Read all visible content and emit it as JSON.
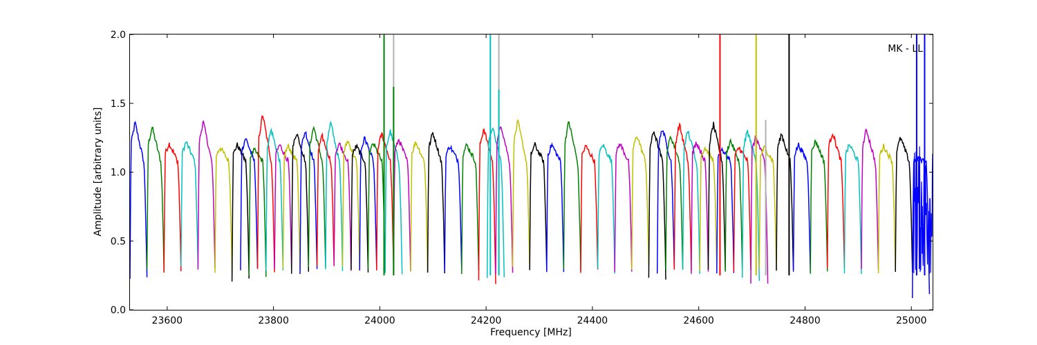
{
  "chart_data": {
    "type": "line",
    "title": "",
    "xlabel": "Frequency [MHz]",
    "ylabel": "Amplitude [arbitrary units]",
    "xlim": [
      23530,
      25040
    ],
    "ylim": [
      0.0,
      2.0
    ],
    "xticks": [
      23600,
      23800,
      24000,
      24200,
      24400,
      24600,
      24800,
      25000
    ],
    "xtick_labels": [
      "23600",
      "23800",
      "24000",
      "24200",
      "24400",
      "24600",
      "24800",
      "25000"
    ],
    "yticks": [
      0.0,
      0.5,
      1.0,
      1.5,
      2.0
    ],
    "ytick_labels": [
      "0.0",
      "0.5",
      "1.0",
      "1.5",
      "2.0"
    ],
    "grid": false,
    "legend": "none",
    "annotation": "MK - LL",
    "color_cycle": [
      "#0000ff",
      "#008000",
      "#ff0000",
      "#00bfbf",
      "#bf00bf",
      "#bfbf00",
      "#000000"
    ],
    "band_width_mhz": 32,
    "band_starts_mhz": [
      23530,
      23562,
      23594,
      23626,
      23658,
      23690,
      23722,
      23738,
      23754,
      23770,
      23786,
      23802,
      23818,
      23834,
      23850,
      23866,
      23882,
      23898,
      23914,
      23930,
      23946,
      23962,
      23978,
      23994,
      24010,
      24026,
      24058,
      24090,
      24122,
      24154,
      24186,
      24202,
      24218,
      24250,
      24282,
      24314,
      24346,
      24378,
      24410,
      24442,
      24474,
      24506,
      24522,
      24538,
      24554,
      24570,
      24586,
      24602,
      24618,
      24634,
      24650,
      24666,
      24682,
      24698,
      24714,
      24746,
      24778,
      24810,
      24842,
      24874,
      24906,
      24938,
      24970,
      25002
    ],
    "band_peaks": [
      1.36,
      1.33,
      1.21,
      1.22,
      1.37,
      1.18,
      1.2,
      1.25,
      1.16,
      1.42,
      1.31,
      1.2,
      1.19,
      1.29,
      1.3,
      1.33,
      1.26,
      1.36,
      1.21,
      1.23,
      1.19,
      1.25,
      1.21,
      1.28,
      1.3,
      1.24,
      1.22,
      1.29,
      1.19,
      1.2,
      1.32,
      1.33,
      1.35,
      1.37,
      1.2,
      1.2,
      1.37,
      1.19,
      1.2,
      1.21,
      1.27,
      1.3,
      1.32,
      1.26,
      1.35,
      1.3,
      1.22,
      1.18,
      1.35,
      1.17,
      1.23,
      1.18,
      1.3,
      1.26,
      1.18,
      1.28,
      1.2,
      1.23,
      1.29,
      1.2,
      1.31,
      1.19,
      1.25,
      1.1
    ],
    "band_nulls": [
      0.22,
      0.28,
      0.28,
      0.3,
      0.3,
      0.28,
      0.22,
      0.28,
      0.23,
      0.28,
      0.28,
      0.28,
      0.28,
      0.28,
      0.28,
      0.3,
      0.3,
      0.3,
      0.3,
      0.3,
      0.28,
      0.28,
      0.28,
      0.28,
      0.25,
      0.28,
      0.28,
      0.28,
      0.28,
      0.28,
      0.2,
      0.25,
      0.28,
      0.3,
      0.28,
      0.28,
      0.28,
      0.28,
      0.28,
      0.28,
      0.3,
      0.23,
      0.28,
      0.28,
      0.28,
      0.28,
      0.28,
      0.28,
      0.28,
      0.28,
      0.28,
      0.28,
      0.22,
      0.2,
      0.3,
      0.28,
      0.28,
      0.28,
      0.3,
      0.28,
      0.28,
      0.28,
      0.28,
      0.1
    ],
    "spikes": [
      {
        "x": 24008,
        "y_top": 2.0,
        "color": "#008000"
      },
      {
        "x": 24026,
        "y_top": 2.0,
        "color": "#b0b0b0"
      },
      {
        "x": 24026,
        "y_top": 1.62,
        "color": "#008000"
      },
      {
        "x": 24208,
        "y_top": 2.0,
        "color": "#00bfbf"
      },
      {
        "x": 24224,
        "y_top": 2.0,
        "color": "#b0b0b0"
      },
      {
        "x": 24224,
        "y_top": 1.6,
        "color": "#00bfbf"
      },
      {
        "x": 24640,
        "y_top": 2.0,
        "color": "#ff0000"
      },
      {
        "x": 24708,
        "y_top": 2.0,
        "color": "#bfbf00"
      },
      {
        "x": 24726,
        "y_top": 1.38,
        "color": "#b0b0b0"
      },
      {
        "x": 24770,
        "y_top": 2.0,
        "color": "#000000"
      },
      {
        "x": 25010,
        "y_top": 2.0,
        "color": "#0000ff"
      },
      {
        "x": 25025,
        "y_top": 2.0,
        "color": "#0000ff"
      }
    ]
  }
}
